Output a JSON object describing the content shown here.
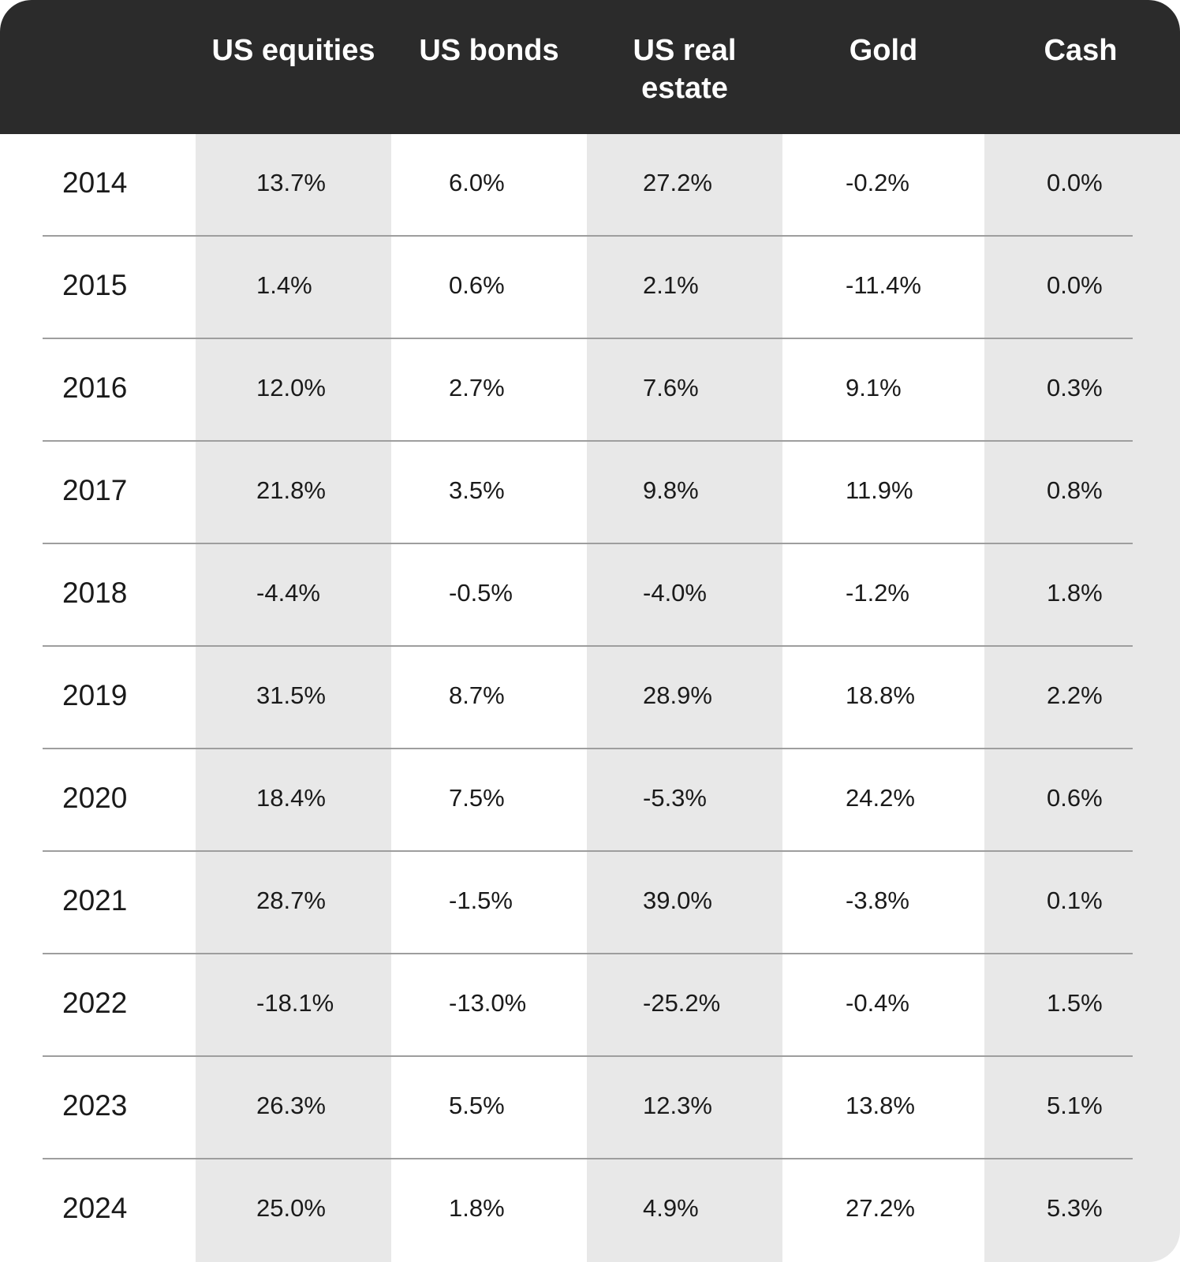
{
  "table": {
    "columns": [
      {
        "key": "us_equities",
        "label": "US equities"
      },
      {
        "key": "us_bonds",
        "label": "US bonds"
      },
      {
        "key": "us_real_estate",
        "label": "US real estate"
      },
      {
        "key": "gold",
        "label": "Gold"
      },
      {
        "key": "cash",
        "label": "Cash"
      }
    ],
    "rows": [
      {
        "year": "2014",
        "values": [
          "13.7%",
          "6.0%",
          "27.2%",
          "-0.2%",
          "0.0%"
        ]
      },
      {
        "year": "2015",
        "values": [
          "1.4%",
          "0.6%",
          "2.1%",
          "-11.4%",
          "0.0%"
        ]
      },
      {
        "year": "2016",
        "values": [
          "12.0%",
          "2.7%",
          "7.6%",
          "9.1%",
          "0.3%"
        ]
      },
      {
        "year": "2017",
        "values": [
          "21.8%",
          "3.5%",
          "9.8%",
          "11.9%",
          "0.8%"
        ]
      },
      {
        "year": "2018",
        "values": [
          "-4.4%",
          "-0.5%",
          "-4.0%",
          "-1.2%",
          "1.8%"
        ]
      },
      {
        "year": "2019",
        "values": [
          "31.5%",
          "8.7%",
          "28.9%",
          "18.8%",
          "2.2%"
        ]
      },
      {
        "year": "2020",
        "values": [
          "18.4%",
          "7.5%",
          "-5.3%",
          "24.2%",
          "0.6%"
        ]
      },
      {
        "year": "2021",
        "values": [
          "28.7%",
          "-1.5%",
          "39.0%",
          "-3.8%",
          "0.1%"
        ]
      },
      {
        "year": "2022",
        "values": [
          "-18.1%",
          "-13.0%",
          "-25.2%",
          "-0.4%",
          "1.5%"
        ]
      },
      {
        "year": "2023",
        "values": [
          "26.3%",
          "5.5%",
          "12.3%",
          "13.8%",
          "5.1%"
        ]
      },
      {
        "year": "2024",
        "values": [
          "25.0%",
          "1.8%",
          "4.9%",
          "27.2%",
          "5.3%"
        ]
      }
    ]
  },
  "colors": {
    "header_bg": "#2b2b2b",
    "header_text": "#ffffff",
    "band_shaded": "#e8e8e8",
    "divider": "#9e9e9e",
    "page_bg": "#ffffff"
  }
}
